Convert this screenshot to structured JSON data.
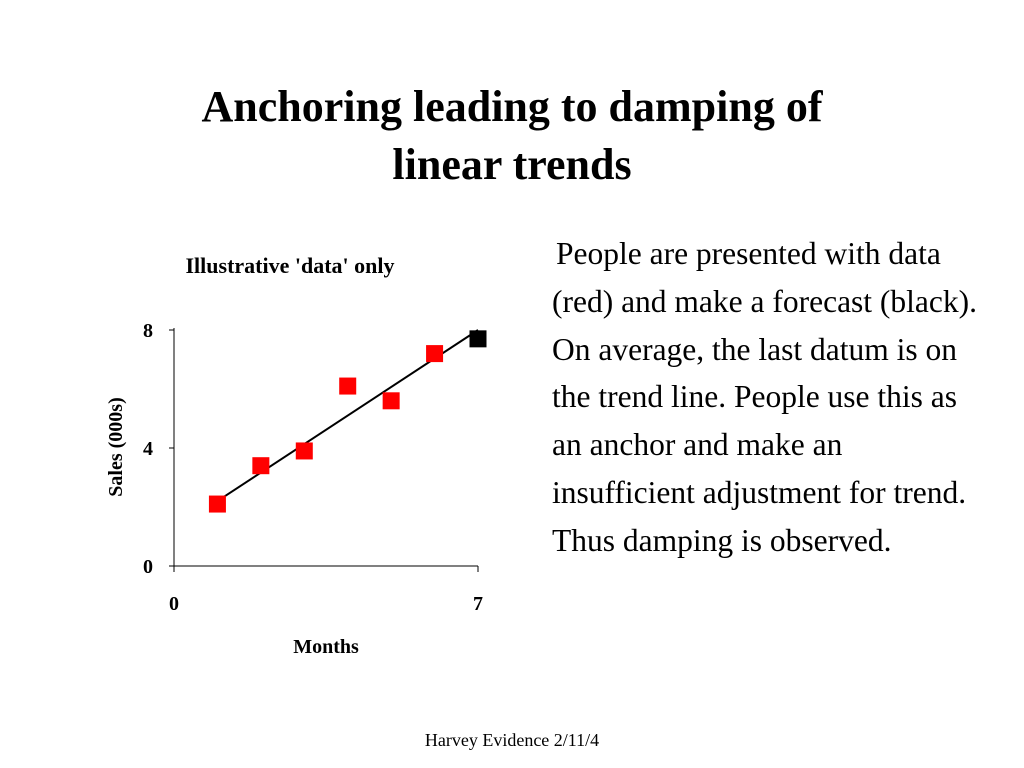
{
  "slide": {
    "title_line1": "Anchoring leading to damping of",
    "title_line2": "linear trends",
    "body": "People are presented with data (red) and make a forecast (black). On average, the last datum is on the trend line. People use this as an anchor and make an insufficient adjustment for trend. Thus damping is observed.",
    "footer": "Harvey Evidence 2/11/4"
  },
  "colors": {
    "data": "#ff0000",
    "forecast": "#000000",
    "trend": "#000000"
  },
  "chart_data": {
    "type": "scatter",
    "title": "Illustrative 'data' only",
    "xlabel": "Months",
    "ylabel": "Sales (000s)",
    "xlim": [
      0,
      7
    ],
    "ylim": [
      0,
      8
    ],
    "xticks": [
      "0",
      "7"
    ],
    "yticks": [
      "0",
      "4",
      "8"
    ],
    "grid": false,
    "series": [
      {
        "color": "#ff0000",
        "marker": "square",
        "x": [
          1,
          2,
          3,
          4,
          5,
          6
        ],
        "y": [
          2.1,
          3.4,
          3.9,
          6.1,
          5.6,
          7.2
        ]
      },
      {
        "color": "#000000",
        "marker": "square",
        "x": [
          7
        ],
        "y": [
          7.7
        ]
      }
    ],
    "trend_line": {
      "x": [
        1,
        7
      ],
      "y": [
        2.2,
        8.0
      ]
    }
  }
}
